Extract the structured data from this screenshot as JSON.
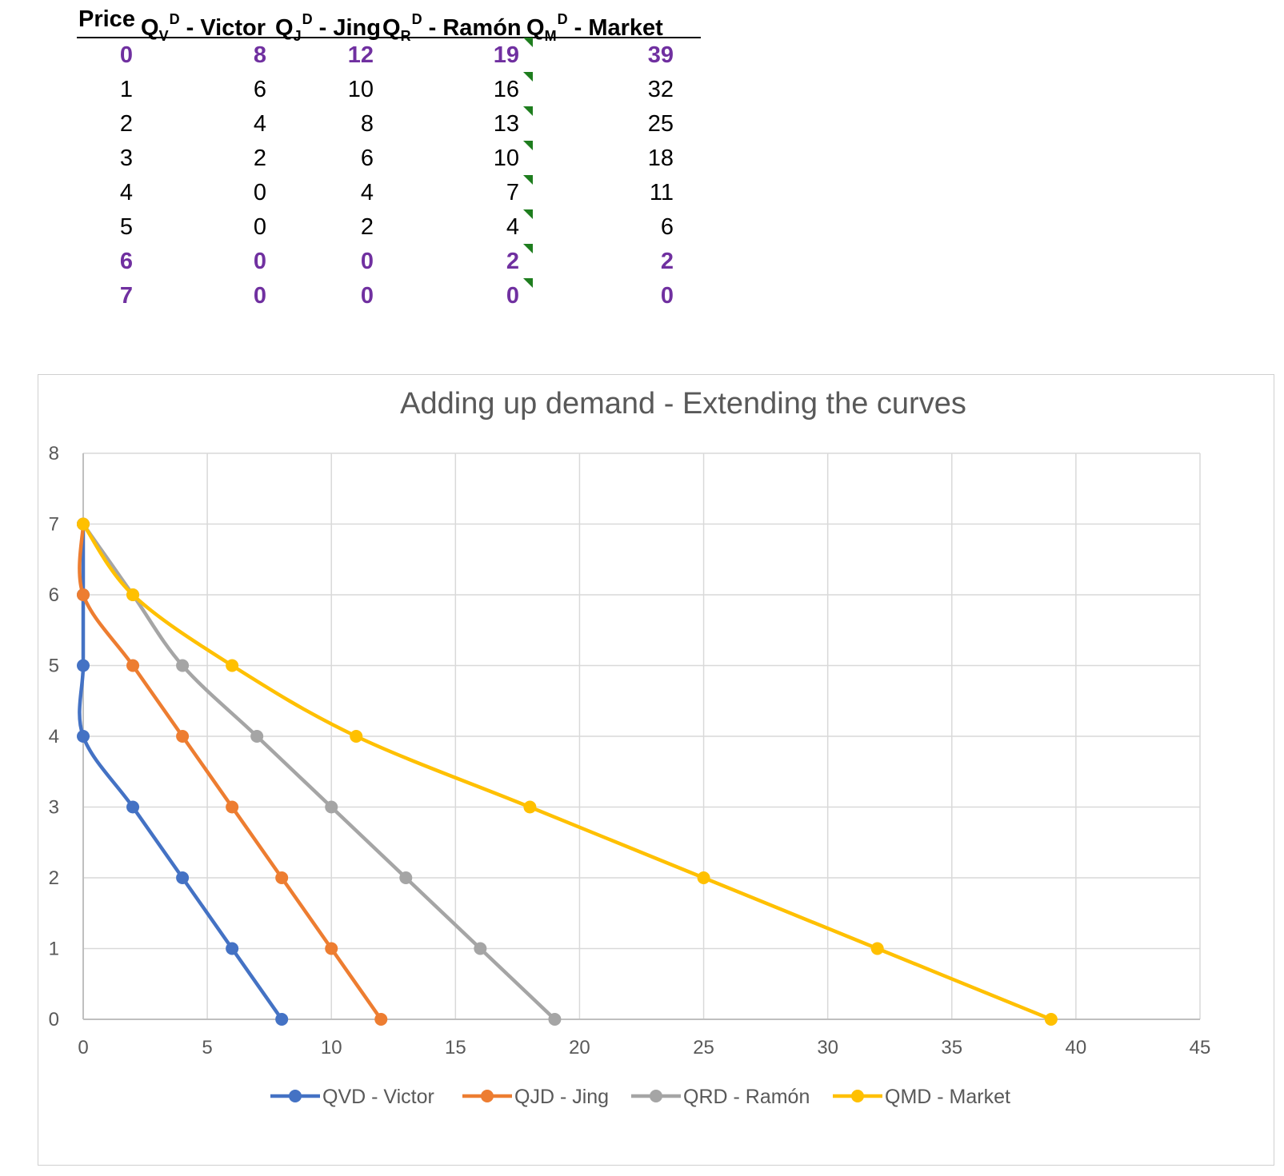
{
  "table": {
    "headers": [
      {
        "main": "Price",
        "sub": "",
        "sup": "",
        "tail": ""
      },
      {
        "main": "Q",
        "sub": "V",
        "sup": "D",
        "tail": " - Victor"
      },
      {
        "main": "Q",
        "sub": "J",
        "sup": "D",
        "tail": " - Jing"
      },
      {
        "main": "Q",
        "sub": "R",
        "sup": "D",
        "tail": " - Ramón"
      },
      {
        "main": "Q",
        "sub": "M",
        "sup": "D",
        "tail": " - Market"
      }
    ],
    "rows": [
      {
        "cells": [
          "0",
          "8",
          "12",
          "19",
          "39"
        ],
        "highlight": true
      },
      {
        "cells": [
          "1",
          "6",
          "10",
          "16",
          "32"
        ],
        "highlight": false
      },
      {
        "cells": [
          "2",
          "4",
          "8",
          "13",
          "25"
        ],
        "highlight": false
      },
      {
        "cells": [
          "3",
          "2",
          "6",
          "10",
          "18"
        ],
        "highlight": false
      },
      {
        "cells": [
          "4",
          "0",
          "4",
          "7",
          "11"
        ],
        "highlight": false
      },
      {
        "cells": [
          "5",
          "0",
          "2",
          "4",
          "6"
        ],
        "highlight": false
      },
      {
        "cells": [
          "6",
          "0",
          "0",
          "2",
          "2"
        ],
        "highlight": true
      },
      {
        "cells": [
          "7",
          "0",
          "0",
          "0",
          "0"
        ],
        "highlight": true
      }
    ]
  },
  "chart_data": {
    "type": "line",
    "title": "Adding up demand - Extending the curves",
    "xlim": [
      0,
      45
    ],
    "ylim": [
      0,
      8
    ],
    "xticks": [
      0,
      5,
      10,
      15,
      20,
      25,
      30,
      35,
      40,
      45
    ],
    "yticks": [
      0,
      1,
      2,
      3,
      4,
      5,
      6,
      7,
      8
    ],
    "grid": true,
    "legend_position": "bottom",
    "smoothed": true,
    "y": [
      0,
      1,
      2,
      3,
      4,
      5,
      6,
      7
    ],
    "series": [
      {
        "name": "QVD - Victor",
        "color": "#4472c4",
        "x": [
          8,
          6,
          4,
          2,
          0,
          0,
          0,
          0
        ]
      },
      {
        "name": "QJD - Jing",
        "color": "#ed7d31",
        "x": [
          12,
          10,
          8,
          6,
          4,
          2,
          0,
          0
        ]
      },
      {
        "name": "QRD - Ramón",
        "color": "#a5a5a5",
        "x": [
          19,
          16,
          13,
          10,
          7,
          4,
          2,
          0
        ]
      },
      {
        "name": "QMD - Market",
        "color": "#ffc000",
        "x": [
          39,
          32,
          25,
          18,
          11,
          6,
          2,
          0
        ]
      }
    ]
  },
  "colors": {
    "highlight_text": "#7030a0",
    "note_marker": "#1e7d1e",
    "grid": "#d9d9d9",
    "text": "#595959"
  }
}
